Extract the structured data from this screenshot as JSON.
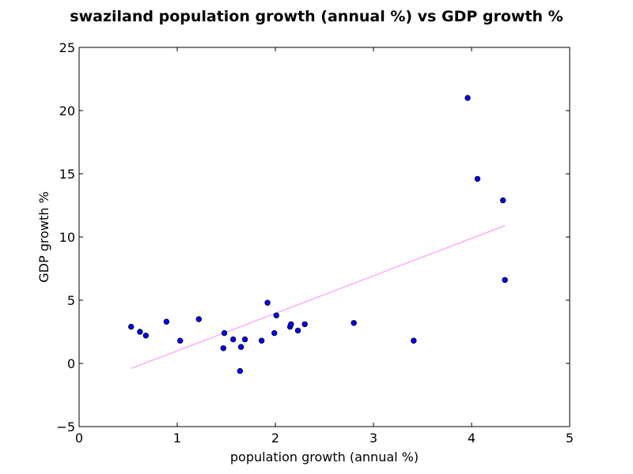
{
  "chart_data": {
    "type": "scatter",
    "title": "swaziland population growth (annual %) vs GDP growth %",
    "xlabel": "population growth (annual %)",
    "ylabel": "GDP growth %",
    "xlim": [
      0,
      5
    ],
    "ylim": [
      -5,
      25
    ],
    "xticks": [
      "0",
      "1",
      "2",
      "3",
      "4",
      "5"
    ],
    "yticks": [
      "−5",
      "0",
      "5",
      "10",
      "15",
      "20",
      "25"
    ],
    "grid": false,
    "legend": "none",
    "point_color": "#0000ff",
    "point_edge_color": "#000000",
    "trend_color": "#ff99ff",
    "points": [
      {
        "x": 0.53,
        "y": 2.9
      },
      {
        "x": 0.62,
        "y": 2.5
      },
      {
        "x": 0.68,
        "y": 2.2
      },
      {
        "x": 0.89,
        "y": 3.3
      },
      {
        "x": 1.03,
        "y": 1.8
      },
      {
        "x": 1.22,
        "y": 3.5
      },
      {
        "x": 1.47,
        "y": 1.2
      },
      {
        "x": 1.48,
        "y": 2.4
      },
      {
        "x": 1.57,
        "y": 1.9
      },
      {
        "x": 1.64,
        "y": -0.6
      },
      {
        "x": 1.65,
        "y": 1.3
      },
      {
        "x": 1.69,
        "y": 1.9
      },
      {
        "x": 1.86,
        "y": 1.8
      },
      {
        "x": 1.92,
        "y": 4.8
      },
      {
        "x": 1.99,
        "y": 2.4
      },
      {
        "x": 2.01,
        "y": 3.8
      },
      {
        "x": 2.15,
        "y": 2.9
      },
      {
        "x": 2.16,
        "y": 3.1
      },
      {
        "x": 2.23,
        "y": 2.6
      },
      {
        "x": 2.3,
        "y": 3.1
      },
      {
        "x": 2.8,
        "y": 3.2
      },
      {
        "x": 3.41,
        "y": 1.8
      },
      {
        "x": 3.96,
        "y": 21.0
      },
      {
        "x": 4.06,
        "y": 14.6
      },
      {
        "x": 4.32,
        "y": 12.9
      },
      {
        "x": 4.34,
        "y": 6.6
      }
    ],
    "trend_line": [
      {
        "x": 0.53,
        "y": -0.4
      },
      {
        "x": 4.34,
        "y": 10.9
      }
    ]
  }
}
